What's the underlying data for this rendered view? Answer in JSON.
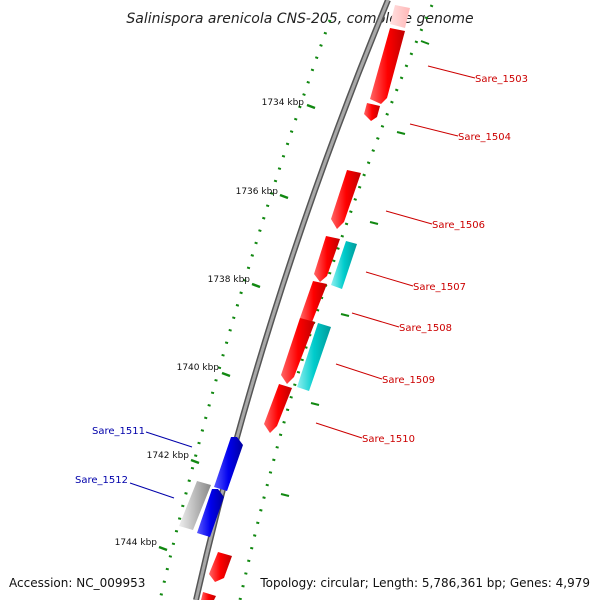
{
  "title": "Salinispora arenicola CNS-205, complete genome",
  "footer": {
    "accession": "Accession: NC_009953",
    "topology": "Topology: circular; Length: 5,786,361 bp; Genes: 4,979"
  },
  "colors": {
    "forward_gene": "#ff0000",
    "reverse_gene": "#0000ee",
    "rna_gene": "#00cccc",
    "pseudo_gene": "#bbbbbb",
    "backbone": "#888888",
    "tick": "#118811",
    "forward_label": "#cc0000",
    "reverse_label": "#0000aa"
  },
  "ticks": [
    {
      "label": "1734 kbp"
    },
    {
      "label": "1736 kbp"
    },
    {
      "label": "1738 kbp"
    },
    {
      "label": "1740 kbp"
    },
    {
      "label": "1742 kbp"
    },
    {
      "label": "1744 kbp"
    }
  ],
  "genes": [
    {
      "name": "Sare_1503",
      "strand": "forward",
      "type": "cds"
    },
    {
      "name": "Sare_1504",
      "strand": "forward",
      "type": "cds"
    },
    {
      "name": "Sare_1506",
      "strand": "forward",
      "type": "cds"
    },
    {
      "name": "Sare_1507",
      "strand": "forward",
      "type": "rna"
    },
    {
      "name": "Sare_1508",
      "strand": "forward",
      "type": "cds"
    },
    {
      "name": "Sare_1509",
      "strand": "forward",
      "type": "rna"
    },
    {
      "name": "Sare_1510",
      "strand": "forward",
      "type": "cds"
    },
    {
      "name": "Sare_1511",
      "strand": "reverse",
      "type": "cds"
    },
    {
      "name": "Sare_1512",
      "strand": "reverse",
      "type": "cds"
    }
  ]
}
